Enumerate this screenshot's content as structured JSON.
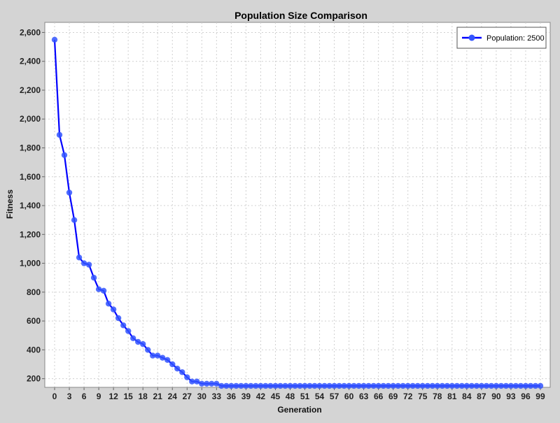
{
  "chart_data": {
    "type": "line",
    "title": "Population Size Comparison",
    "xlabel": "Generation",
    "ylabel": "Fitness",
    "xlim": [
      -2,
      101
    ],
    "ylim": [
      140,
      2670
    ],
    "x_ticks": [
      0,
      3,
      6,
      9,
      12,
      15,
      18,
      21,
      24,
      27,
      30,
      33,
      36,
      39,
      42,
      45,
      48,
      51,
      54,
      57,
      60,
      63,
      66,
      69,
      72,
      75,
      78,
      81,
      84,
      87,
      90,
      93,
      96,
      99
    ],
    "y_ticks": [
      200,
      400,
      600,
      800,
      1000,
      1200,
      1400,
      1600,
      1800,
      2000,
      2200,
      2400,
      2600
    ],
    "y_tick_labels": [
      "200",
      "400",
      "600",
      "800",
      "1,000",
      "1,200",
      "1,400",
      "1,600",
      "1,800",
      "2,000",
      "2,200",
      "2,400",
      "2,600"
    ],
    "grid": true,
    "legend_position": "top-right",
    "plot_background": "#ffffff",
    "series": [
      {
        "name": "Population: 2500",
        "color": "#0000ff",
        "marker_color": "#3355ff",
        "x": [
          0,
          1,
          2,
          3,
          4,
          5,
          6,
          7,
          8,
          9,
          10,
          11,
          12,
          13,
          14,
          15,
          16,
          17,
          18,
          19,
          20,
          21,
          22,
          23,
          24,
          25,
          26,
          27,
          28,
          29,
          30,
          31,
          32,
          33,
          34,
          35,
          36,
          37,
          38,
          39,
          40,
          41,
          42,
          43,
          44,
          45,
          46,
          47,
          48,
          49,
          50,
          51,
          52,
          53,
          54,
          55,
          56,
          57,
          58,
          59,
          60,
          61,
          62,
          63,
          64,
          65,
          66,
          67,
          68,
          69,
          70,
          71,
          72,
          73,
          74,
          75,
          76,
          77,
          78,
          79,
          80,
          81,
          82,
          83,
          84,
          85,
          86,
          87,
          88,
          89,
          90,
          91,
          92,
          93,
          94,
          95,
          96,
          97,
          98,
          99
        ],
        "values": [
          2550,
          1890,
          1750,
          1490,
          1300,
          1040,
          1000,
          990,
          900,
          820,
          810,
          720,
          680,
          620,
          570,
          530,
          480,
          455,
          440,
          400,
          360,
          360,
          345,
          330,
          300,
          270,
          245,
          210,
          180,
          180,
          165,
          165,
          165,
          165,
          150,
          150,
          150,
          150,
          150,
          150,
          150,
          150,
          150,
          150,
          150,
          150,
          150,
          150,
          150,
          150,
          150,
          150,
          150,
          150,
          150,
          150,
          150,
          150,
          150,
          150,
          150,
          150,
          150,
          150,
          150,
          150,
          150,
          150,
          150,
          150,
          150,
          150,
          150,
          150,
          150,
          150,
          150,
          150,
          150,
          150,
          150,
          150,
          150,
          150,
          150,
          150,
          150,
          150,
          150,
          150,
          150,
          150,
          150,
          150,
          150,
          150,
          150,
          150,
          150,
          150
        ]
      }
    ]
  }
}
